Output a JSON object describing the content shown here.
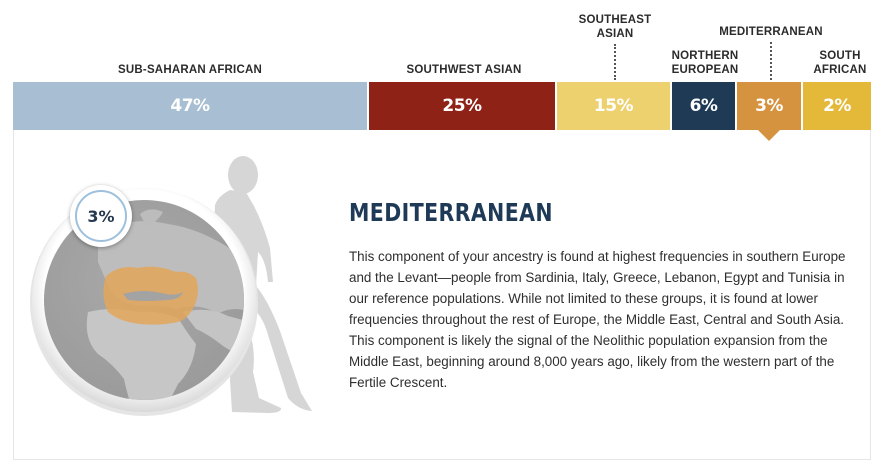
{
  "segments": [
    {
      "name": "SUB-SAHARAN AFRICAN",
      "label_lines": [
        "SUB-SAHARAN AFRICAN"
      ],
      "percent": 47,
      "display": "47%",
      "color": "#a8bed2"
    },
    {
      "name": "SOUTHWEST ASIAN",
      "label_lines": [
        "SOUTHWEST ASIAN"
      ],
      "percent": 25,
      "display": "25%",
      "color": "#8e2217"
    },
    {
      "name": "SOUTHEAST ASIAN",
      "label_lines": [
        "SOUTHEAST",
        "ASIAN"
      ],
      "percent": 15,
      "display": "15%",
      "color": "#ecd16e"
    },
    {
      "name": "NORTHERN EUROPEAN",
      "label_lines": [
        "NORTHERN",
        "EUROPEAN"
      ],
      "percent": 6,
      "display": "6%",
      "color": "#1f3a54"
    },
    {
      "name": "MEDITERRANEAN",
      "label_lines": [
        "MEDITERRANEAN"
      ],
      "percent": 3,
      "display": "3%",
      "color": "#d5933f"
    },
    {
      "name": "SOUTH AFRICAN",
      "label_lines": [
        "SOUTH",
        "AFRICAN"
      ],
      "percent": 2,
      "display": "2%",
      "color": "#e4b93a"
    }
  ],
  "selected": {
    "name": "MEDITERRANEAN",
    "badge": "3%",
    "title": "MEDITERRANEAN",
    "description": "This component of your ancestry is found at highest frequencies in southern Europe and the Levant—people from Sardinia, Italy, Greece, Lebanon, Egypt and Tunisia in our reference populations. While not limited to these groups, it is found at lower frequencies throughout the rest of Europe, the Middle East, Central and South Asia. This component is likely the signal of the Neolithic population expansion from the Middle East, beginning around 8,000 years ago, likely from the western part of the Fertile Crescent."
  },
  "icons": {
    "figure": "walking-human-silhouette-icon",
    "globe": "globe-europe-africa-icon"
  }
}
